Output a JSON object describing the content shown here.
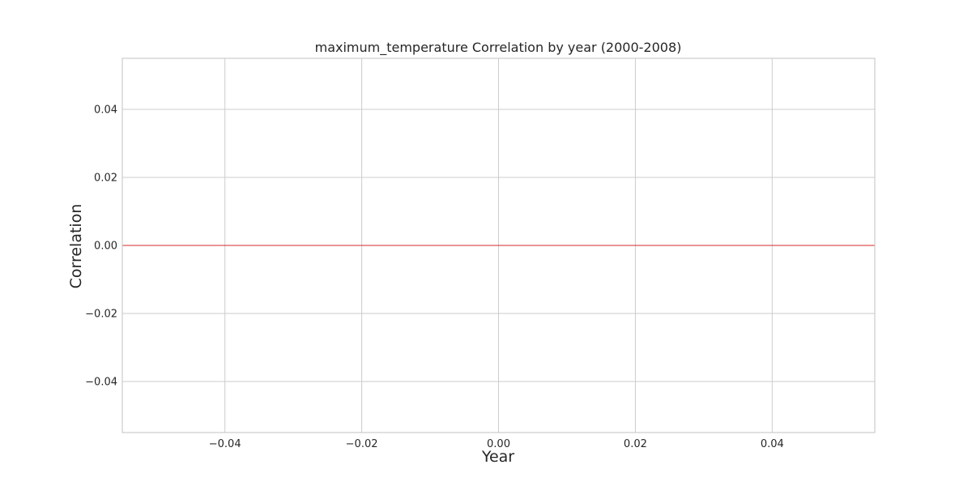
{
  "chart_data": {
    "type": "line",
    "title": "maximum_temperature Correlation by year (2000-2008)",
    "xlabel": "Year",
    "ylabel": "Correlation",
    "xlim": [
      -0.055,
      0.055
    ],
    "ylim": [
      -0.055,
      0.055
    ],
    "x_ticks": [
      -0.04,
      -0.02,
      0.0,
      0.02,
      0.04
    ],
    "x_tick_labels": [
      "−0.04",
      "−0.02",
      "0.00",
      "0.02",
      "0.04"
    ],
    "y_ticks": [
      0.04,
      0.02,
      0.0,
      -0.02,
      -0.04
    ],
    "y_tick_labels": [
      "0.04",
      "0.02",
      "0.00",
      "−0.02",
      "−0.04"
    ],
    "grid": true,
    "series": [],
    "reference_lines": [
      {
        "type": "horizontal",
        "y": 0.0,
        "color": "#d62728"
      }
    ]
  }
}
